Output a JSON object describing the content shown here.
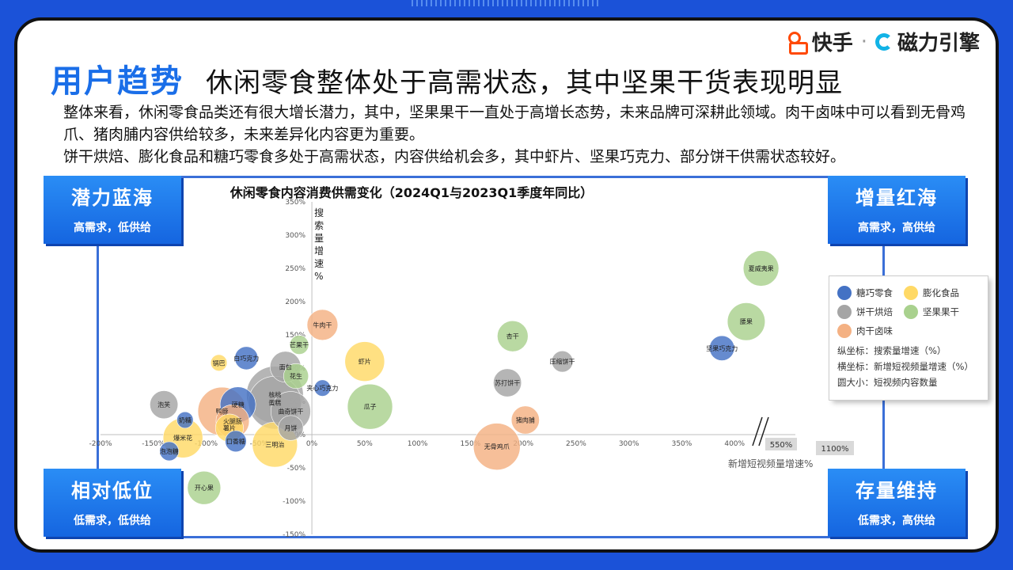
{
  "brand": {
    "kuaishou": "快手",
    "separator": "·",
    "cili": "磁力引擎"
  },
  "header": {
    "tag": "用户趋势",
    "title": "休闲零食整体处于高需状态，其中坚果干货表现明显"
  },
  "description": [
    "整体来看，休闲零食品类还有很大增长潜力，其中，坚果果干一直处于高增长态势，未来品牌可深耕此领域。肉干卤味中可以看到无骨鸡爪、猪肉脯内容供给较多，未来差异化内容更为重要。",
    "饼干烘焙、膨化食品和糖巧零食多处于高需状态，内容供给机会多，其中虾片、坚果巧克力、部分饼干供需状态较好。"
  ],
  "quadrants": {
    "top_left": {
      "title": "潜力蓝海",
      "sub": "高需求，低供给"
    },
    "top_right": {
      "title": "增量红海",
      "sub": "高需求，高供给"
    },
    "bottom_left": {
      "title": "相对低位",
      "sub": "低需求，低供给"
    },
    "bottom_right": {
      "title": "存量维持",
      "sub": "低需求，高供给"
    }
  },
  "legend": {
    "items": [
      "糖巧零食",
      "膨化食品",
      "饼干烘焙",
      "坚果果干",
      "肉干卤味"
    ],
    "y_note": "纵坐标：搜索量增速（%）",
    "x_note": "横坐标：新增短视频量增速（%）",
    "size_note": "圆大小：短视频内容数量"
  },
  "colors": {
    "candy": "#4472c4",
    "puffed": "#ffd966",
    "biscuit": "#a5a5a5",
    "nuts": "#a9d18e",
    "meat": "#f4b183",
    "accent": "#1a6ee8"
  },
  "chart_data": {
    "type": "scatter",
    "title": "休闲零食内容消费供需变化（2024Q1与2023Q1季度年同比）",
    "xlabel": "新增短视频量增速%",
    "ylabel": "搜索量增速%",
    "xlim": [
      -200,
      450
    ],
    "ylim": [
      -150,
      350
    ],
    "x_ticks": [
      "-200%",
      "-150%",
      "-100%",
      "-50%",
      "0%",
      "50%",
      "100%",
      "150%",
      "200%",
      "250%",
      "300%",
      "350%",
      "400%"
    ],
    "y_ticks": [
      "-150%",
      "-100%",
      "-50%",
      "0%",
      "50%",
      "100%",
      "150%",
      "200%",
      "250%",
      "300%",
      "350%"
    ],
    "axis_break_labels": [
      "550%",
      "1100%"
    ],
    "series": [
      {
        "name": "糖巧零食",
        "color": "#4472c4",
        "points": [
          {
            "label": "白巧克力",
            "x": -62,
            "y": 115,
            "size": 5
          },
          {
            "label": "夹心巧克力",
            "x": 10,
            "y": 70,
            "size": 2
          },
          {
            "label": "奶糖",
            "x": -120,
            "y": 22,
            "size": 2
          },
          {
            "label": "泡泡糖",
            "x": -135,
            "y": -25,
            "size": 3
          },
          {
            "label": "口香糖",
            "x": -72,
            "y": -10,
            "size": 4
          },
          {
            "label": "硬糖",
            "x": -70,
            "y": 45,
            "size": 14
          },
          {
            "label": "坚果巧克力",
            "x": 388,
            "y": 130,
            "size": 6
          }
        ]
      },
      {
        "name": "膨化食品",
        "color": "#ffd966",
        "points": [
          {
            "label": "锅巴",
            "x": -88,
            "y": 108,
            "size": 2
          },
          {
            "label": "爆米花",
            "x": -122,
            "y": -5,
            "size": 18
          },
          {
            "label": "薯片",
            "x": -78,
            "y": 10,
            "size": 8
          },
          {
            "label": "三明治",
            "x": -35,
            "y": -15,
            "size": 24
          },
          {
            "label": "虾片",
            "x": 50,
            "y": 110,
            "size": 18
          }
        ]
      },
      {
        "name": "饼干烘焙",
        "color": "#a5a5a5",
        "points": [
          {
            "label": "泡芙",
            "x": -140,
            "y": 45,
            "size": 8
          },
          {
            "label": "面包",
            "x": -25,
            "y": 102,
            "size": 10
          },
          {
            "label": "核桃",
            "x": -35,
            "y": 60,
            "size": 40
          },
          {
            "label": "蛋糕",
            "x": -35,
            "y": 48,
            "size": 34
          },
          {
            "label": "曲奇饼干",
            "x": -20,
            "y": 35,
            "size": 18
          },
          {
            "label": "月饼",
            "x": -20,
            "y": 10,
            "size": 6
          },
          {
            "label": "苏打饼干",
            "x": 185,
            "y": 78,
            "size": 8
          },
          {
            "label": "压缩饼干",
            "x": 237,
            "y": 110,
            "size": 4
          }
        ]
      },
      {
        "name": "坚果果干",
        "color": "#a9d18e",
        "points": [
          {
            "label": "芒果干",
            "x": -12,
            "y": 135,
            "size": 3
          },
          {
            "label": "花生",
            "x": -15,
            "y": 88,
            "size": 6
          },
          {
            "label": "瓜子",
            "x": 55,
            "y": 42,
            "size": 24
          },
          {
            "label": "杏干",
            "x": 190,
            "y": 148,
            "size": 10
          },
          {
            "label": "腰果",
            "x": 411,
            "y": 170,
            "size": 16
          },
          {
            "label": "夏威夷果",
            "x": 425,
            "y": 250,
            "size": 14
          },
          {
            "label": "开心果",
            "x": -102,
            "y": -80,
            "size": 12
          }
        ]
      },
      {
        "name": "肉干卤味",
        "color": "#f4b183",
        "points": [
          {
            "label": "牛肉干",
            "x": 10,
            "y": 165,
            "size": 10
          },
          {
            "label": "鸭脖",
            "x": -85,
            "y": 35,
            "size": 28
          },
          {
            "label": "火腿肠",
            "x": -75,
            "y": 20,
            "size": 12
          },
          {
            "label": "无骨鸡爪",
            "x": 175,
            "y": -18,
            "size": 26
          },
          {
            "label": "猪肉脯",
            "x": 202,
            "y": 22,
            "size": 8
          }
        ]
      }
    ]
  }
}
